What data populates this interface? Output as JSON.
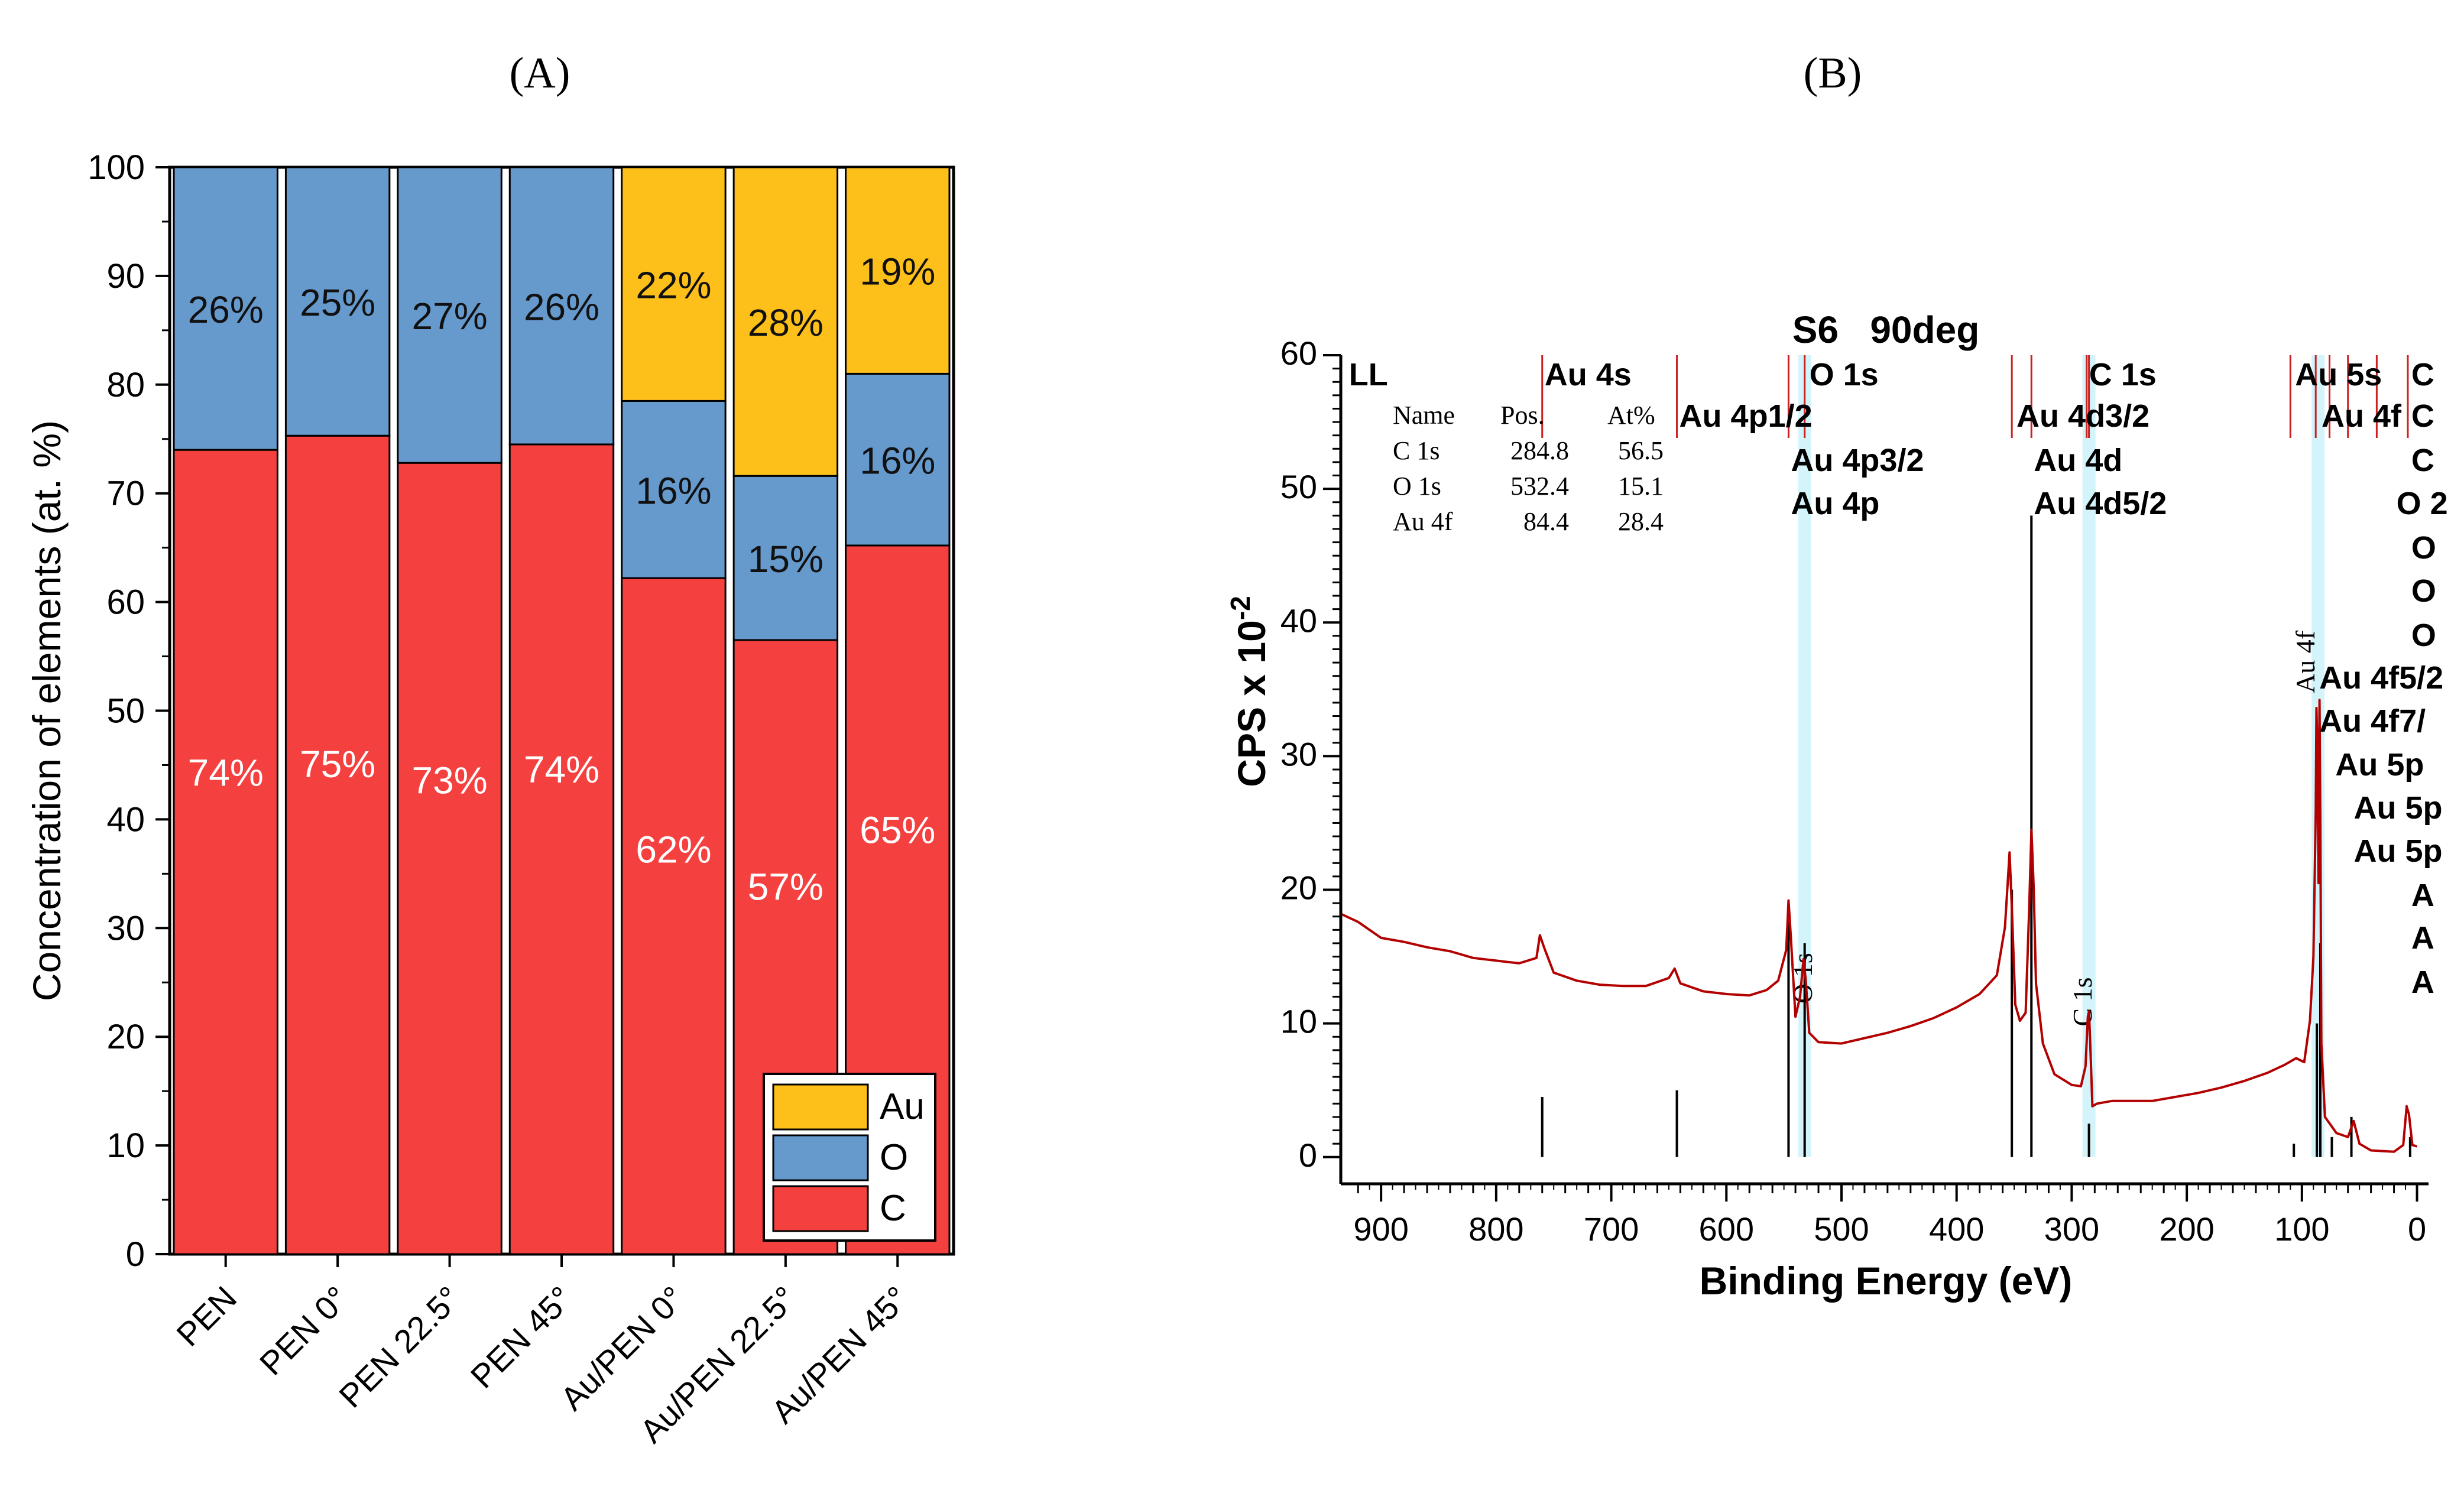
{
  "panels": {
    "a_label": "(A)",
    "b_label": "(B)"
  },
  "chart_data": [
    {
      "type": "bar",
      "stacked": true,
      "title": "",
      "xlabel": "",
      "ylabel": "Concentration of elements (at. %)",
      "ylim": [
        0,
        100
      ],
      "yticks": [
        0,
        10,
        20,
        30,
        40,
        50,
        60,
        70,
        80,
        90,
        100
      ],
      "categories": [
        "PEN",
        "PEN 0°",
        "PEN 22.5°",
        "PEN 45°",
        "Au/PEN 0°",
        "Au/PEN 22.5°",
        "Au/PEN 45°"
      ],
      "series": [
        {
          "name": "C",
          "color": "#f54040",
          "values": [
            74,
            75.3,
            72.8,
            74.5,
            62.2,
            56.5,
            65.2
          ],
          "labels": [
            "74%",
            "75%",
            "73%",
            "74%",
            "62%",
            "57%",
            "65%"
          ]
        },
        {
          "name": "O",
          "color": "#6699cc",
          "values": [
            26,
            24.7,
            27.2,
            25.5,
            16.3,
            15.1,
            15.8
          ],
          "labels": [
            "26%",
            "25%",
            "27%",
            "26%",
            "16%",
            "15%",
            "16%"
          ]
        },
        {
          "name": "Au",
          "color": "#fdbf1a",
          "values": [
            0,
            0,
            0,
            0,
            21.5,
            28.4,
            19.0
          ],
          "labels": [
            "",
            "",
            "",
            "",
            "22%",
            "28%",
            "19%"
          ]
        }
      ],
      "legend": {
        "position": "bottom-right",
        "entries": [
          "Au",
          "O",
          "C"
        ]
      }
    },
    {
      "type": "line",
      "title": "S6   90deg",
      "xlabel": "Binding Energy (eV)",
      "ylabel": "CPS x 10",
      "ylabel_exp": "-2",
      "xlim": [
        935,
        -10
      ],
      "ylim": [
        -2,
        60
      ],
      "xticks": [
        900,
        800,
        700,
        600,
        500,
        400,
        300,
        200,
        100,
        0
      ],
      "yticks": [
        0,
        10,
        20,
        30,
        40,
        50,
        60
      ],
      "peak_table": {
        "headers": [
          "Name",
          "Pos.",
          "At%"
        ],
        "rows": [
          [
            "C 1s",
            "284.8",
            "56.5"
          ],
          [
            "O 1s",
            "532.4",
            "15.1"
          ],
          [
            "Au 4f",
            "84.4",
            "28.4"
          ]
        ]
      },
      "region_labels": [
        {
          "text": "O 1s",
          "x": 532
        },
        {
          "text": "C 1s",
          "x": 285
        },
        {
          "text": "Au 4f",
          "x": 86
        }
      ],
      "peak_labels": [
        {
          "text": "LL",
          "x": 930,
          "row": 0
        },
        {
          "text": "Au 4s",
          "x": 760,
          "row": 0
        },
        {
          "text": "O 1s",
          "x": 530,
          "row": 0
        },
        {
          "text": "C 1s",
          "x": 287,
          "row": 0
        },
        {
          "text": "Au 5s",
          "x": 108,
          "row": 0
        },
        {
          "text": "C",
          "x": 7,
          "row": 0
        },
        {
          "text": "Au 4p1/2",
          "x": 643,
          "row": 1
        },
        {
          "text": "Au 4d3/2",
          "x": 350,
          "row": 1
        },
        {
          "text": "Au 4f",
          "x": 85,
          "row": 1
        },
        {
          "text": "C",
          "x": 7,
          "row": 1
        },
        {
          "text": "Au 4p3/2",
          "x": 546,
          "row": 2
        },
        {
          "text": "Au 4d",
          "x": 335,
          "row": 2
        },
        {
          "text": "C",
          "x": 7,
          "row": 2
        },
        {
          "text": "Au 4p",
          "x": 546,
          "row": 3
        },
        {
          "text": "Au 4d5/2",
          "x": 335,
          "row": 3
        },
        {
          "text": "O 2",
          "x": 20,
          "row": 3
        },
        {
          "text": "O",
          "x": 7,
          "row": 4
        },
        {
          "text": "O",
          "x": 7,
          "row": 5
        },
        {
          "text": "O",
          "x": 7,
          "row": 6
        },
        {
          "text": "Au 4f5/2",
          "x": 87,
          "row": 7
        },
        {
          "text": "Au 4f7/",
          "x": 87,
          "row": 8
        },
        {
          "text": "Au 5p",
          "x": 73,
          "row": 9
        },
        {
          "text": "Au 5p",
          "x": 57,
          "row": 10
        },
        {
          "text": "Au 5p",
          "x": 57,
          "row": 11
        },
        {
          "text": "A",
          "x": 7,
          "row": 12
        },
        {
          "text": "A",
          "x": 7,
          "row": 13
        },
        {
          "text": "A",
          "x": 7,
          "row": 14
        }
      ],
      "reference_lines": [
        {
          "x": 760,
          "height": 4.5
        },
        {
          "x": 643,
          "height": 5
        },
        {
          "x": 546,
          "height": 18
        },
        {
          "x": 532,
          "height": 16
        },
        {
          "x": 352,
          "height": 20
        },
        {
          "x": 335,
          "height": 48
        },
        {
          "x": 285,
          "height": 2.5
        },
        {
          "x": 107,
          "height": 1
        },
        {
          "x": 87,
          "height": 10
        },
        {
          "x": 84,
          "height": 16
        },
        {
          "x": 74,
          "height": 1.5
        },
        {
          "x": 57,
          "height": 3
        },
        {
          "x": 6,
          "height": 1.5
        }
      ],
      "spectrum": [
        [
          935,
          18.2
        ],
        [
          920,
          17.6
        ],
        [
          900,
          16.4
        ],
        [
          880,
          16.1
        ],
        [
          860,
          15.7
        ],
        [
          840,
          15.4
        ],
        [
          820,
          14.9
        ],
        [
          800,
          14.7
        ],
        [
          780,
          14.5
        ],
        [
          765,
          14.9
        ],
        [
          762,
          16.6
        ],
        [
          758,
          15.6
        ],
        [
          750,
          13.8
        ],
        [
          730,
          13.2
        ],
        [
          710,
          12.9
        ],
        [
          690,
          12.8
        ],
        [
          670,
          12.8
        ],
        [
          650,
          13.4
        ],
        [
          645,
          14.1
        ],
        [
          640,
          13.0
        ],
        [
          620,
          12.4
        ],
        [
          600,
          12.2
        ],
        [
          580,
          12.1
        ],
        [
          565,
          12.5
        ],
        [
          555,
          13.2
        ],
        [
          548,
          15.5
        ],
        [
          546,
          19.2
        ],
        [
          544,
          16.5
        ],
        [
          540,
          10.5
        ],
        [
          536,
          12.0
        ],
        [
          533,
          14.8
        ],
        [
          531,
          13.2
        ],
        [
          528,
          9.3
        ],
        [
          520,
          8.6
        ],
        [
          500,
          8.5
        ],
        [
          480,
          8.9
        ],
        [
          460,
          9.3
        ],
        [
          440,
          9.8
        ],
        [
          420,
          10.4
        ],
        [
          400,
          11.2
        ],
        [
          380,
          12.2
        ],
        [
          365,
          13.6
        ],
        [
          358,
          17.2
        ],
        [
          354,
          22.8
        ],
        [
          352,
          18.6
        ],
        [
          349,
          11.4
        ],
        [
          345,
          10.2
        ],
        [
          340,
          10.8
        ],
        [
          337,
          18.5
        ],
        [
          335,
          24.5
        ],
        [
          333,
          20.2
        ],
        [
          331,
          13.0
        ],
        [
          325,
          8.5
        ],
        [
          315,
          6.2
        ],
        [
          300,
          5.4
        ],
        [
          292,
          5.3
        ],
        [
          288,
          6.8
        ],
        [
          286,
          10.5
        ],
        [
          285,
          10.9
        ],
        [
          284,
          8.7
        ],
        [
          282,
          3.8
        ],
        [
          278,
          4.0
        ],
        [
          265,
          4.2
        ],
        [
          250,
          4.2
        ],
        [
          230,
          4.2
        ],
        [
          210,
          4.5
        ],
        [
          190,
          4.8
        ],
        [
          170,
          5.2
        ],
        [
          150,
          5.7
        ],
        [
          130,
          6.3
        ],
        [
          115,
          6.9
        ],
        [
          105,
          7.4
        ],
        [
          98,
          7.1
        ],
        [
          93,
          10.2
        ],
        [
          90,
          15.0
        ],
        [
          88,
          25.8
        ],
        [
          87.4,
          33.6
        ],
        [
          86.5,
          30.5
        ],
        [
          85.6,
          20.5
        ],
        [
          84.7,
          34.2
        ],
        [
          84.0,
          25.2
        ],
        [
          83.1,
          8.5
        ],
        [
          80,
          3.0
        ],
        [
          75,
          2.4
        ],
        [
          70,
          1.8
        ],
        [
          60,
          1.5
        ],
        [
          55,
          2.7
        ],
        [
          50,
          1.0
        ],
        [
          40,
          0.5
        ],
        [
          20,
          0.4
        ],
        [
          12,
          0.9
        ],
        [
          9,
          3.8
        ],
        [
          7,
          3.2
        ],
        [
          4,
          0.9
        ],
        [
          0,
          0.8
        ]
      ]
    }
  ]
}
